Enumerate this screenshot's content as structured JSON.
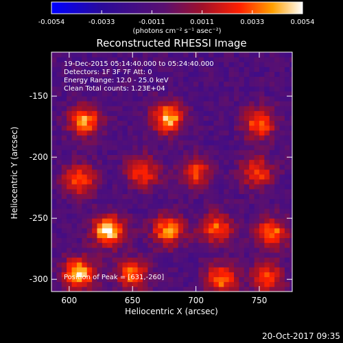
{
  "chart_data": {
    "type": "heatmap",
    "title": "Reconstructed RHESSI Image",
    "xlabel": "Heliocentric X (arcsec)",
    "ylabel": "Heliocentric Y (arcsec)",
    "xlim": [
      586,
      776
    ],
    "ylim": [
      -310,
      -114
    ],
    "x_ticks": [
      600,
      650,
      700,
      750
    ],
    "y_ticks": [
      -150,
      -200,
      -250,
      -300
    ],
    "colorbar": {
      "min": -0.0054,
      "max": 0.0054,
      "ticks": [
        "-0.0054",
        "-0.0033",
        "-0.0011",
        "0.0011",
        "0.0033",
        "0.0054"
      ],
      "unit_label": "(photons cm⁻² s⁻¹ asec⁻²)"
    },
    "annotations": [
      "19-Dec-2015 05:14:40.000 to 05:24:40.000",
      "Detectors: 1F 3F 7F  Att: 0",
      "Energy Range: 12.0 - 25.0 keV",
      "Clean    Total counts: 1.23E+04",
      "Position of Peak = [631,-260]"
    ],
    "peak": {
      "x": 631,
      "y": -260
    },
    "sources": [
      {
        "x": 612,
        "y": -170,
        "value": 0.004
      },
      {
        "x": 678,
        "y": -168,
        "value": 0.0046
      },
      {
        "x": 750,
        "y": -172,
        "value": 0.0035
      },
      {
        "x": 658,
        "y": -212,
        "value": 0.003
      },
      {
        "x": 700,
        "y": -212,
        "value": 0.0028
      },
      {
        "x": 608,
        "y": -218,
        "value": 0.0034
      },
      {
        "x": 748,
        "y": -212,
        "value": 0.003
      },
      {
        "x": 631,
        "y": -260,
        "value": 0.0054
      },
      {
        "x": 678,
        "y": -260,
        "value": 0.004
      },
      {
        "x": 716,
        "y": -258,
        "value": 0.0034
      },
      {
        "x": 760,
        "y": -262,
        "value": 0.0036
      },
      {
        "x": 608,
        "y": -295,
        "value": 0.0048
      },
      {
        "x": 650,
        "y": -296,
        "value": 0.0036
      },
      {
        "x": 720,
        "y": -300,
        "value": 0.0034
      },
      {
        "x": 756,
        "y": -298,
        "value": 0.003
      }
    ],
    "background_value": -0.0012
  },
  "footer": {
    "timestamp": "20-Oct-2017 09:35"
  }
}
